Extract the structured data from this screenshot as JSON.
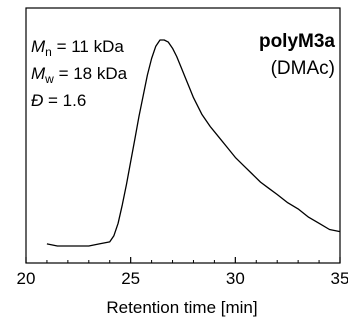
{
  "chart_data": {
    "type": "line",
    "title": "polyM3a",
    "subtitle": "(DMAc)",
    "xlabel": "Retention time [min]",
    "ylabel": "",
    "xlim": [
      21,
      35
    ],
    "ylim": [
      0,
      1
    ],
    "x_ticks": [
      "20",
      "25",
      "30",
      "35"
    ],
    "x_tick_values": [
      20,
      25,
      30,
      35
    ],
    "grid": false,
    "annotations": [
      {
        "symbol": "M",
        "sub": "n",
        "text": " = 11 kDa"
      },
      {
        "symbol": "M",
        "sub": "w",
        "text": " = 18 kDa"
      },
      {
        "symbol": "Đ",
        "sub": "",
        "text": " = 1.6"
      }
    ],
    "series": [
      {
        "x": [
          21.0,
          21.5,
          22.0,
          22.5,
          23.0,
          23.5,
          24.0,
          24.2,
          24.4,
          24.6,
          24.8,
          25.0,
          25.2,
          25.4,
          25.6,
          25.8,
          26.0,
          26.2,
          26.4,
          26.6,
          26.8,
          27.0,
          27.2,
          27.4,
          27.6,
          27.8,
          28.0,
          28.4,
          28.8,
          29.2,
          29.6,
          30.0,
          30.4,
          30.8,
          31.2,
          31.6,
          32.0,
          32.5,
          33.0,
          33.5,
          34.0,
          34.5,
          35.0
        ],
        "y": [
          0.01,
          0.0,
          0.0,
          0.0,
          0.0,
          0.01,
          0.02,
          0.05,
          0.11,
          0.2,
          0.3,
          0.41,
          0.52,
          0.63,
          0.73,
          0.83,
          0.91,
          0.97,
          1.0,
          1.0,
          0.99,
          0.96,
          0.92,
          0.87,
          0.82,
          0.77,
          0.72,
          0.64,
          0.58,
          0.53,
          0.48,
          0.43,
          0.39,
          0.35,
          0.31,
          0.28,
          0.25,
          0.21,
          0.18,
          0.14,
          0.11,
          0.08,
          0.07
        ]
      }
    ]
  }
}
